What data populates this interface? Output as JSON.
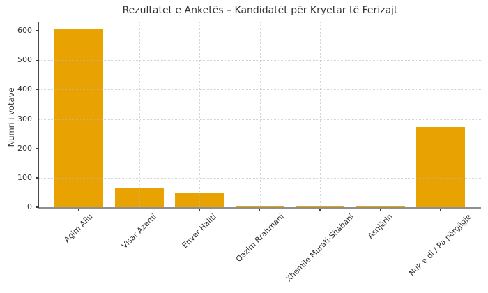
{
  "chart_data": {
    "type": "bar",
    "title": "Rezultatet e Anketës – Kandidatët për Kryetar të Ferizajt",
    "xlabel": "",
    "ylabel": "Numri i votave",
    "categories": [
      "Agim Aliu",
      "Visar Azemi",
      "Enver Haliti",
      "Qazim Rrahmani",
      "Xhemile Murati-Shabani",
      "Asnjërin",
      "Nuk e di / Pa përgjigje"
    ],
    "values": [
      607,
      67,
      48,
      5,
      5,
      2,
      273
    ],
    "yticks": [
      0,
      100,
      200,
      300,
      400,
      500,
      600
    ],
    "ylim": [
      0,
      631
    ],
    "grid": true,
    "grid_style": "dotted",
    "legend": false,
    "bar_color": "#E8A202"
  },
  "colors": {
    "bar": "#E8A202",
    "grid": "rgba(185,185,185,0.6)",
    "axis_spine": "#4a4a4a",
    "x_axis_line": "#8f8f8f",
    "text": "#333333",
    "background": "#ffffff"
  }
}
